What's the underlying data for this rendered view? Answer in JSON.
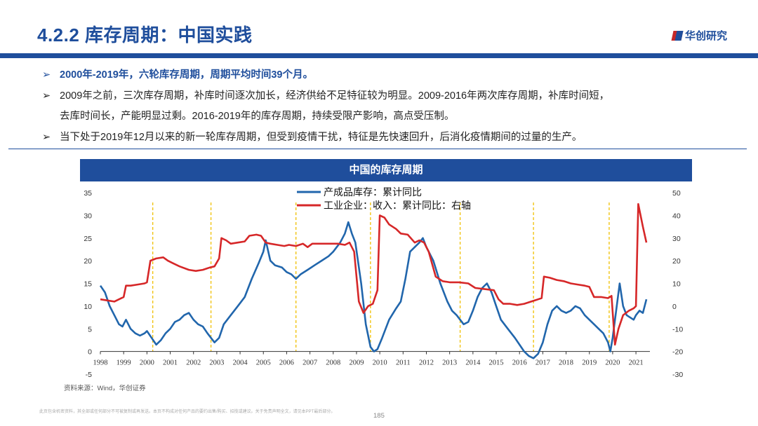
{
  "header": {
    "title": "4.2.2 库存周期：中国实践",
    "logo_text": "华创研究"
  },
  "bullets": {
    "b1": "2000年-2019年，六轮库存周期，周期平均时间39个月。",
    "b2_line1": "2009年之前，三次库存周期，补库时间逐次加长，经济供给不足特征较为明显。2009-2016年两次库存周期，补库时间短，",
    "b2_line2": "去库时间长，产能明显过剩。2016-2019年的库存周期，持续受限产影响，高点受压制。",
    "b3": "当下处于2019年12月以来的新一轮库存周期，但受到疫情干扰，特征是先快速回升，后消化疫情期间的过量的生产。",
    "arrow": "➢"
  },
  "chart_header": "中国的库存周期",
  "source": "资料来源：Wind，华创证券",
  "disclaimer": "此页包含机密资料，其全部或任何部分不可被复制或再发送。本页不构成对任何产品的要约出售/购买、招揽或建议。关于免责声明全文，请见本PPT最后部分。",
  "page_number": "185",
  "colors": {
    "brand": "#1f4e9c",
    "inventory": "#2166ac",
    "revenue": "#d62728",
    "cycle_line": "#f0c000"
  },
  "chart_data": {
    "type": "line",
    "title": "中国的库存周期",
    "x_ticks": [
      "1998",
      "1999",
      "2000",
      "2001",
      "2002",
      "2003",
      "2004",
      "2005",
      "2006",
      "2007",
      "2008",
      "2009",
      "2010",
      "2011",
      "2012",
      "2013",
      "2014",
      "2015",
      "2016",
      "2017",
      "2018",
      "2019",
      "2020",
      "2021"
    ],
    "left_axis": {
      "ticks": [
        35,
        30,
        25,
        20,
        15,
        10,
        5,
        0,
        -5
      ],
      "ylim": [
        -5,
        35
      ]
    },
    "right_axis": {
      "ticks": [
        50,
        40,
        30,
        20,
        10,
        0,
        -10,
        -20,
        -30
      ],
      "ylim": [
        -30,
        50
      ]
    },
    "cycle_markers": [
      2000.25,
      2002.75,
      2006.4,
      2009.6,
      2013.45,
      2016.6,
      2019.85
    ],
    "series": [
      {
        "name": "产成品库存：累计同比",
        "axis": "left",
        "points": [
          [
            1998.0,
            14.5
          ],
          [
            1998.2,
            13
          ],
          [
            1998.4,
            10
          ],
          [
            1998.6,
            8
          ],
          [
            1998.8,
            6
          ],
          [
            1998.95,
            5.5
          ],
          [
            1999.1,
            7
          ],
          [
            1999.3,
            5
          ],
          [
            1999.5,
            4
          ],
          [
            1999.7,
            3.5
          ],
          [
            1999.9,
            4
          ],
          [
            2000.0,
            4.5
          ],
          [
            2000.2,
            3
          ],
          [
            2000.4,
            1.5
          ],
          [
            2000.6,
            2.5
          ],
          [
            2000.8,
            4
          ],
          [
            2001.0,
            5
          ],
          [
            2001.2,
            6.5
          ],
          [
            2001.4,
            7
          ],
          [
            2001.6,
            8
          ],
          [
            2001.8,
            8.5
          ],
          [
            2002.0,
            7
          ],
          [
            2002.2,
            6
          ],
          [
            2002.4,
            5.5
          ],
          [
            2002.6,
            4
          ],
          [
            2002.75,
            3
          ],
          [
            2002.9,
            2
          ],
          [
            2003.1,
            3
          ],
          [
            2003.3,
            6
          ],
          [
            2003.6,
            8
          ],
          [
            2003.9,
            10
          ],
          [
            2004.2,
            12
          ],
          [
            2004.5,
            16
          ],
          [
            2004.8,
            19.5
          ],
          [
            2005.0,
            22
          ],
          [
            2005.1,
            24.5
          ],
          [
            2005.3,
            20
          ],
          [
            2005.5,
            19
          ],
          [
            2005.8,
            18.5
          ],
          [
            2006.0,
            17.5
          ],
          [
            2006.2,
            17
          ],
          [
            2006.4,
            16
          ],
          [
            2006.6,
            17
          ],
          [
            2006.9,
            18
          ],
          [
            2007.2,
            19
          ],
          [
            2007.5,
            20
          ],
          [
            2007.8,
            21
          ],
          [
            2008.0,
            22
          ],
          [
            2008.3,
            24
          ],
          [
            2008.5,
            26
          ],
          [
            2008.65,
            28.5
          ],
          [
            2008.8,
            26
          ],
          [
            2008.95,
            24
          ],
          [
            2009.2,
            15
          ],
          [
            2009.4,
            6
          ],
          [
            2009.6,
            1
          ],
          [
            2009.75,
            0
          ],
          [
            2009.9,
            0.5
          ],
          [
            2010.1,
            3
          ],
          [
            2010.4,
            7
          ],
          [
            2010.7,
            9.5
          ],
          [
            2010.9,
            11
          ],
          [
            2011.1,
            16
          ],
          [
            2011.3,
            22
          ],
          [
            2011.5,
            23
          ],
          [
            2011.7,
            24
          ],
          [
            2011.85,
            25
          ],
          [
            2012.0,
            23
          ],
          [
            2012.3,
            20
          ],
          [
            2012.6,
            15
          ],
          [
            2012.9,
            11
          ],
          [
            2013.1,
            9
          ],
          [
            2013.3,
            8
          ],
          [
            2013.45,
            7
          ],
          [
            2013.6,
            6
          ],
          [
            2013.8,
            6.5
          ],
          [
            2014.0,
            9
          ],
          [
            2014.2,
            12
          ],
          [
            2014.4,
            14
          ],
          [
            2014.6,
            15
          ],
          [
            2014.8,
            13
          ],
          [
            2015.0,
            10
          ],
          [
            2015.2,
            7
          ],
          [
            2015.5,
            5
          ],
          [
            2015.8,
            3
          ],
          [
            2016.0,
            1.5
          ],
          [
            2016.2,
            0
          ],
          [
            2016.4,
            -1
          ],
          [
            2016.6,
            -1.5
          ],
          [
            2016.8,
            -0.5
          ],
          [
            2017.0,
            2
          ],
          [
            2017.2,
            6
          ],
          [
            2017.4,
            9
          ],
          [
            2017.6,
            10
          ],
          [
            2017.8,
            9
          ],
          [
            2018.0,
            8.5
          ],
          [
            2018.2,
            9
          ],
          [
            2018.4,
            10
          ],
          [
            2018.6,
            9.5
          ],
          [
            2018.8,
            8
          ],
          [
            2019.0,
            7
          ],
          [
            2019.2,
            6
          ],
          [
            2019.4,
            5
          ],
          [
            2019.6,
            4
          ],
          [
            2019.8,
            2
          ],
          [
            2019.9,
            0
          ],
          [
            2020.0,
            3
          ],
          [
            2020.15,
            9
          ],
          [
            2020.3,
            15
          ],
          [
            2020.45,
            10
          ],
          [
            2020.6,
            8
          ],
          [
            2020.75,
            7.5
          ],
          [
            2020.9,
            7
          ],
          [
            2021.0,
            8
          ],
          [
            2021.15,
            9
          ],
          [
            2021.3,
            8.5
          ],
          [
            2021.45,
            11.5
          ]
        ]
      },
      {
        "name": "工业企业：收入：累计同比：右轴",
        "axis": "right",
        "points": [
          [
            1998.0,
            3
          ],
          [
            1998.3,
            2.5
          ],
          [
            1998.6,
            2
          ],
          [
            1998.8,
            3
          ],
          [
            1999.0,
            4
          ],
          [
            1999.1,
            9
          ],
          [
            1999.3,
            9
          ],
          [
            1999.6,
            9.5
          ],
          [
            1999.9,
            10
          ],
          [
            2000.0,
            10.5
          ],
          [
            2000.15,
            20
          ],
          [
            2000.4,
            21
          ],
          [
            2000.7,
            21.5
          ],
          [
            2000.9,
            20
          ],
          [
            2001.1,
            19
          ],
          [
            2001.4,
            17.5
          ],
          [
            2001.8,
            16
          ],
          [
            2002.1,
            15.5
          ],
          [
            2002.4,
            16
          ],
          [
            2002.7,
            17
          ],
          [
            2002.9,
            17.5
          ],
          [
            2003.1,
            21
          ],
          [
            2003.2,
            30
          ],
          [
            2003.4,
            29
          ],
          [
            2003.6,
            27.5
          ],
          [
            2003.9,
            28
          ],
          [
            2004.2,
            28.5
          ],
          [
            2004.4,
            31
          ],
          [
            2004.7,
            31.5
          ],
          [
            2004.9,
            31
          ],
          [
            2005.1,
            28
          ],
          [
            2005.3,
            27.5
          ],
          [
            2005.6,
            27
          ],
          [
            2005.9,
            26.5
          ],
          [
            2006.1,
            27
          ],
          [
            2006.4,
            26.5
          ],
          [
            2006.7,
            27.5
          ],
          [
            2006.9,
            26
          ],
          [
            2007.1,
            27.5
          ],
          [
            2007.5,
            27.5
          ],
          [
            2007.9,
            27.5
          ],
          [
            2008.2,
            27.5
          ],
          [
            2008.5,
            27
          ],
          [
            2008.7,
            28
          ],
          [
            2008.9,
            24
          ],
          [
            2009.1,
            2
          ],
          [
            2009.3,
            -3
          ],
          [
            2009.5,
            0
          ],
          [
            2009.7,
            1
          ],
          [
            2009.9,
            7
          ],
          [
            2010.0,
            40
          ],
          [
            2010.2,
            39
          ],
          [
            2010.4,
            36
          ],
          [
            2010.7,
            34
          ],
          [
            2010.9,
            32
          ],
          [
            2011.2,
            31.5
          ],
          [
            2011.5,
            28
          ],
          [
            2011.7,
            29
          ],
          [
            2011.9,
            28
          ],
          [
            2012.1,
            24
          ],
          [
            2012.4,
            13
          ],
          [
            2012.7,
            11
          ],
          [
            2013.0,
            10.5
          ],
          [
            2013.4,
            10.5
          ],
          [
            2013.8,
            10
          ],
          [
            2014.1,
            8
          ],
          [
            2014.5,
            7.5
          ],
          [
            2014.9,
            7
          ],
          [
            2015.1,
            3
          ],
          [
            2015.3,
            1
          ],
          [
            2015.6,
            1
          ],
          [
            2015.9,
            0.5
          ],
          [
            2016.2,
            1
          ],
          [
            2016.5,
            2
          ],
          [
            2016.8,
            3
          ],
          [
            2016.95,
            3.5
          ],
          [
            2017.05,
            13
          ],
          [
            2017.3,
            12.5
          ],
          [
            2017.6,
            11.5
          ],
          [
            2017.9,
            11
          ],
          [
            2018.2,
            10
          ],
          [
            2018.5,
            9.5
          ],
          [
            2018.8,
            9
          ],
          [
            2019.0,
            8.5
          ],
          [
            2019.2,
            4
          ],
          [
            2019.5,
            4
          ],
          [
            2019.8,
            3.5
          ],
          [
            2019.95,
            4.5
          ],
          [
            2020.1,
            -17
          ],
          [
            2020.25,
            -10
          ],
          [
            2020.45,
            -4
          ],
          [
            2020.7,
            -2
          ],
          [
            2020.9,
            -1
          ],
          [
            2021.0,
            0
          ],
          [
            2021.1,
            45
          ],
          [
            2021.3,
            35
          ],
          [
            2021.45,
            28
          ]
        ]
      }
    ]
  }
}
